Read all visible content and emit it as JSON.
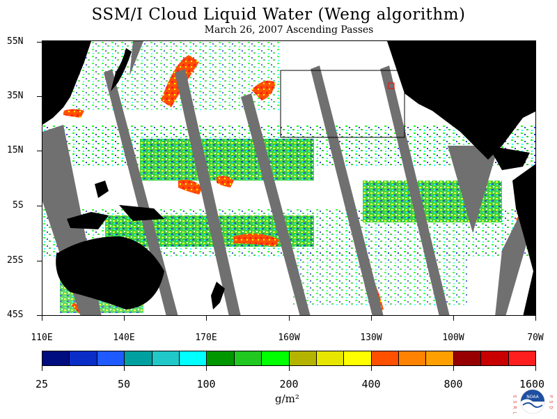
{
  "title": "SSM/I Cloud Liquid Water (Weng algorithm)",
  "subtitle": "March 26, 2007  Ascending Passes",
  "y_axis_labels": [
    "55N",
    "35N",
    "15N",
    "5S",
    "25S",
    "45S"
  ],
  "x_axis_labels": [
    "110E",
    "140E",
    "170E",
    "160W",
    "130W",
    "100W",
    "70W"
  ],
  "colorbar": {
    "colors": [
      "#000d80",
      "#0a2dc8",
      "#1e5aff",
      "#00a0a0",
      "#20c8c8",
      "#00ffff",
      "#009600",
      "#20c820",
      "#00ff00",
      "#b4b400",
      "#e6e600",
      "#ffff00",
      "#ff5000",
      "#ff8200",
      "#ffa000",
      "#960000",
      "#c80000",
      "#ff1e1e"
    ],
    "labels": [
      "25",
      "50",
      "100",
      "200",
      "400",
      "800",
      "1600"
    ],
    "units": "g/m²"
  },
  "logo": {
    "left_letters": "E S R L",
    "right_letters": "P S D",
    "center_text": "NOAA"
  }
}
